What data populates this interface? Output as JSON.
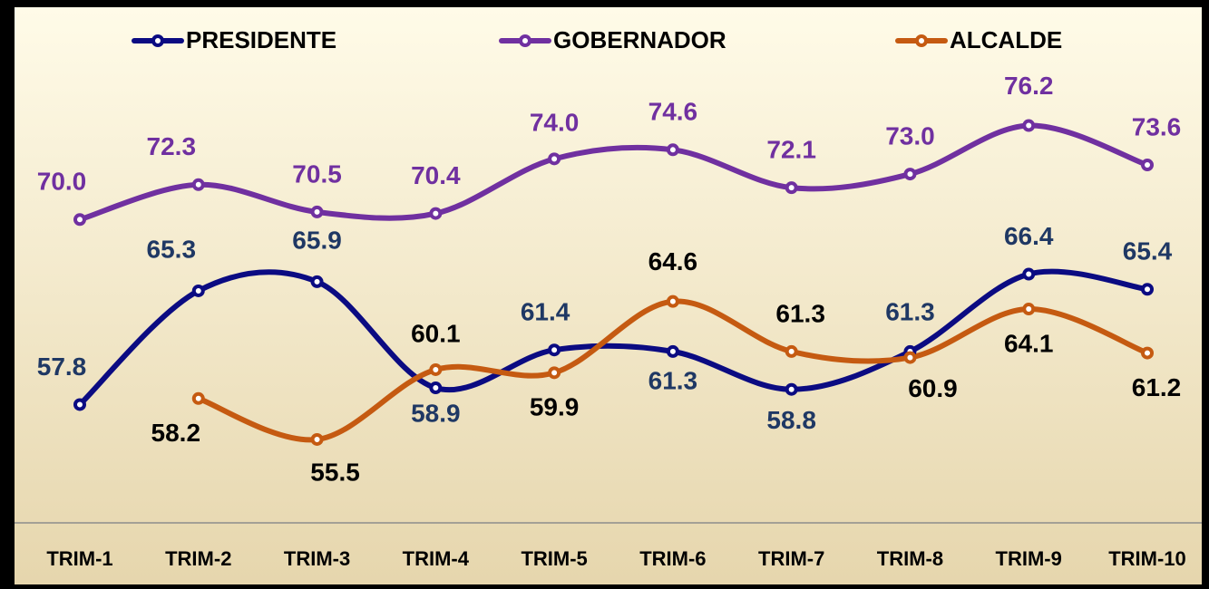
{
  "chart_data": {
    "type": "line",
    "categories": [
      "TRIM-1",
      "TRIM-2",
      "TRIM-3",
      "TRIM-4",
      "TRIM-5",
      "TRIM-6",
      "TRIM-7",
      "TRIM-8",
      "TRIM-9",
      "TRIM-10"
    ],
    "series": [
      {
        "name": "PRESIDENTE",
        "color": "#0b0b82",
        "label_color": "#1f3864",
        "values": [
          57.8,
          65.3,
          65.9,
          58.9,
          61.4,
          61.3,
          58.8,
          61.3,
          66.4,
          65.4
        ],
        "value_labels": [
          "57.8",
          "65.3",
          "65.9",
          "58.9",
          "61.4",
          "61.3",
          "58.8",
          "61.3",
          "66.4",
          "65.4"
        ]
      },
      {
        "name": "GOBERNADOR",
        "color": "#7030a0",
        "label_color": "#7030a0",
        "values": [
          70.0,
          72.3,
          70.5,
          70.4,
          74.0,
          74.6,
          72.1,
          73.0,
          76.2,
          73.6
        ],
        "value_labels": [
          "70.0",
          "72.3",
          "70.5",
          "70.4",
          "74.0",
          "74.6",
          "72.1",
          "73.0",
          "76.2",
          "73.6"
        ]
      },
      {
        "name": "ALCALDE",
        "color": "#c55a11",
        "label_color": "#000000",
        "values": [
          null,
          58.2,
          55.5,
          60.1,
          59.9,
          64.6,
          61.3,
          60.9,
          64.1,
          61.2
        ],
        "value_labels": [
          null,
          "58.2",
          "55.5",
          "60.1",
          "59.9",
          "64.6",
          "61.3",
          "60.9",
          "64.1",
          "61.2"
        ]
      }
    ],
    "ylim": [
      50,
      84
    ],
    "legend": "top"
  }
}
